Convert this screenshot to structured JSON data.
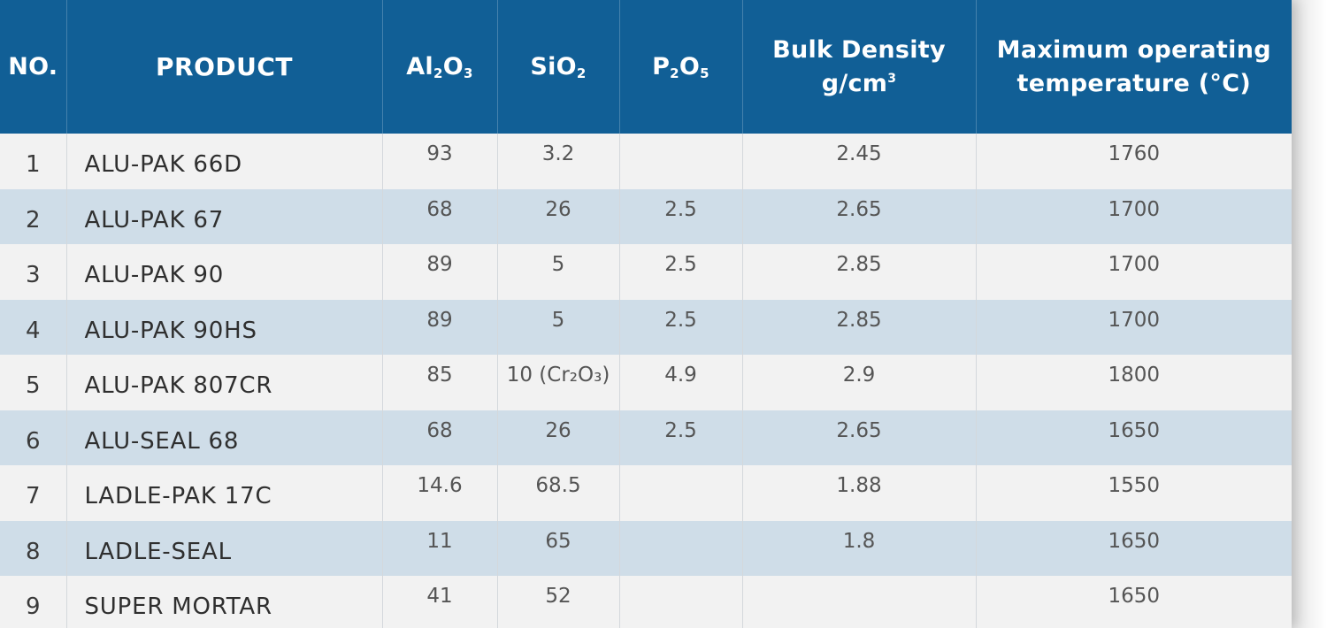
{
  "colors": {
    "header_bg": "#115f96",
    "row_light": "#f2f2f2",
    "row_blue": "#cfdde8",
    "text": "#555555"
  },
  "table": {
    "headers": {
      "no": "NO.",
      "product": "PRODUCT",
      "al2o3_main": "Al",
      "al2o3_sub1": "2",
      "al2o3_o": "O",
      "al2o3_sub2": "3",
      "sio2_main": "SiO",
      "sio2_sub": "2",
      "p2o5_main": "P",
      "p2o5_sub1": "2",
      "p2o5_o": "O",
      "p2o5_sub2": "5",
      "bulk_line1": "Bulk Density",
      "bulk_line2": "g/cm",
      "bulk_sup": "3",
      "max_line1": "Maximum operating",
      "max_line2": "temperature (°C)"
    },
    "rows": [
      {
        "no": "1",
        "product": "ALU-PAK 66D",
        "al2o3": "93",
        "sio2": "3.2",
        "p2o5": "",
        "bulk_density": "2.45",
        "max_temp": "1760"
      },
      {
        "no": "2",
        "product": "ALU-PAK 67",
        "al2o3": "68",
        "sio2": "26",
        "p2o5": "2.5",
        "bulk_density": "2.65",
        "max_temp": "1700"
      },
      {
        "no": "3",
        "product": "ALU-PAK 90",
        "al2o3": "89",
        "sio2": "5",
        "p2o5": "2.5",
        "bulk_density": "2.85",
        "max_temp": "1700"
      },
      {
        "no": "4",
        "product": "ALU-PAK 90HS",
        "al2o3": "89",
        "sio2": "5",
        "p2o5": "2.5",
        "bulk_density": "2.85",
        "max_temp": "1700"
      },
      {
        "no": "5",
        "product": "ALU-PAK 807CR",
        "al2o3": "85",
        "sio2": "10 (Cr₂O₃)",
        "p2o5": "4.9",
        "bulk_density": "2.9",
        "max_temp": "1800"
      },
      {
        "no": "6",
        "product": "ALU-SEAL 68",
        "al2o3": "68",
        "sio2": "26",
        "p2o5": "2.5",
        "bulk_density": "2.65",
        "max_temp": "1650"
      },
      {
        "no": "7",
        "product": "LADLE-PAK 17C",
        "al2o3": "14.6",
        "sio2": "68.5",
        "p2o5": "",
        "bulk_density": "1.88",
        "max_temp": "1550"
      },
      {
        "no": "8",
        "product": "LADLE-SEAL",
        "al2o3": "11",
        "sio2": "65",
        "p2o5": "",
        "bulk_density": "1.8",
        "max_temp": "1650"
      },
      {
        "no": "9",
        "product": "SUPER MORTAR",
        "al2o3": "41",
        "sio2": "52",
        "p2o5": "",
        "bulk_density": "",
        "max_temp": "1650"
      }
    ]
  }
}
